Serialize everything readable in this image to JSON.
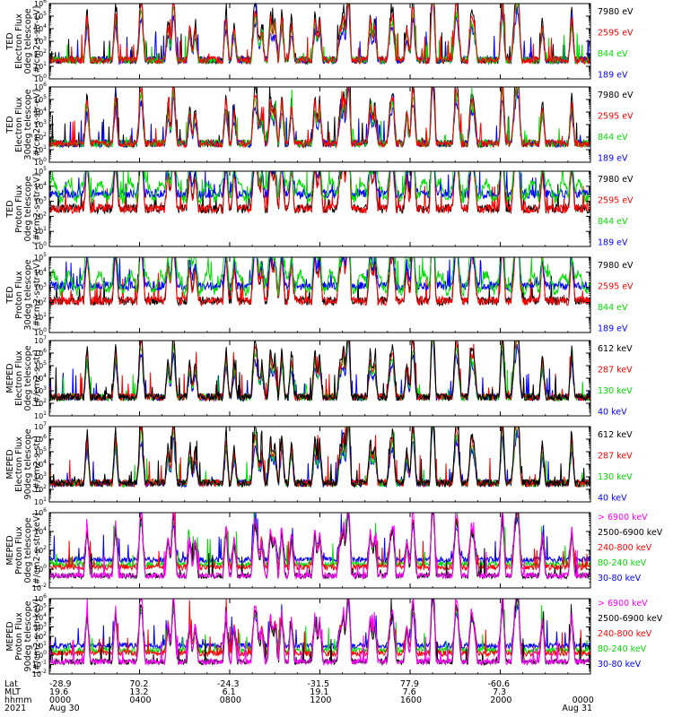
{
  "chart_data": [
    {
      "type": "line",
      "ylabel": [
        "TED",
        "Electron Flux",
        "0deg telescope",
        "[#/cm2-s-str-eV]"
      ],
      "ylim_exp": [
        0,
        6
      ],
      "ytick_exponents": [
        0,
        1,
        2,
        3,
        4,
        5,
        6
      ],
      "base": 1.2,
      "series": [
        {
          "name": "7980 eV",
          "color": "#000000"
        },
        {
          "name": "2595 eV",
          "color": "#ff0000"
        },
        {
          "name": "844 eV",
          "color": "#00dd00"
        },
        {
          "name": "189 eV",
          "color": "#0000ff"
        }
      ],
      "draw_order": [
        0,
        3,
        2,
        1
      ]
    },
    {
      "type": "line",
      "ylabel": [
        "TED",
        "Electron Flux",
        "30deg telescope",
        "[#/cm2-s-str-eV]"
      ],
      "ylim_exp": [
        0,
        6
      ],
      "ytick_exponents": [
        0,
        1,
        2,
        3,
        4,
        5,
        6
      ],
      "base": 1.2,
      "series": [
        {
          "name": "7980 eV",
          "color": "#000000"
        },
        {
          "name": "2595 eV",
          "color": "#ff0000"
        },
        {
          "name": "844 eV",
          "color": "#00dd00"
        },
        {
          "name": "189 eV",
          "color": "#0000ff"
        }
      ],
      "draw_order": [
        0,
        3,
        2,
        1
      ]
    },
    {
      "type": "line",
      "ylabel": [
        "TED",
        "Proton Flux",
        "0deg telescope",
        "[#/cm2-s-str-eV]"
      ],
      "ylim_exp": [
        0,
        5
      ],
      "ytick_exponents": [
        0,
        1,
        2,
        3,
        4,
        5
      ],
      "base": 2.0,
      "series": [
        {
          "name": "7980 eV",
          "color": "#000000"
        },
        {
          "name": "2595 eV",
          "color": "#ff0000"
        },
        {
          "name": "844 eV",
          "color": "#00dd00"
        },
        {
          "name": "189 eV",
          "color": "#0000ff"
        }
      ],
      "draw_order": [
        0,
        1,
        3,
        2
      ]
    },
    {
      "type": "line",
      "ylabel": [
        "TED",
        "Proton Flux",
        "30deg telescope",
        "[#/cm2-s-str-eV]"
      ],
      "ylim_exp": [
        0,
        5
      ],
      "ytick_exponents": [
        0,
        1,
        2,
        3,
        4,
        5
      ],
      "base": 1.6,
      "series": [
        {
          "name": "7980 eV",
          "color": "#000000"
        },
        {
          "name": "2595 eV",
          "color": "#ff0000"
        },
        {
          "name": "844 eV",
          "color": "#00dd00"
        },
        {
          "name": "189 eV",
          "color": "#0000ff"
        }
      ],
      "draw_order": [
        0,
        1,
        3,
        2
      ]
    },
    {
      "type": "line",
      "ylabel": [
        "MEPED",
        "Electron Flux",
        "0deg telescope",
        "[#/cm2-s-str]"
      ],
      "ylim_exp": [
        1,
        7
      ],
      "ytick_exponents": [
        1,
        2,
        3,
        4,
        5,
        6,
        7
      ],
      "base": 2.2,
      "series": [
        {
          "name": "612 keV",
          "color": "#000000"
        },
        {
          "name": "287 keV",
          "color": "#ff0000"
        },
        {
          "name": "130 keV",
          "color": "#00dd00"
        },
        {
          "name": "40 keV",
          "color": "#0000ff"
        }
      ],
      "draw_order": [
        3,
        2,
        1,
        0
      ]
    },
    {
      "type": "line",
      "ylabel": [
        "MEPED",
        "Electron Flux",
        "90deg telescope",
        "[#/cm2-s-str]"
      ],
      "ylim_exp": [
        1,
        7
      ],
      "ytick_exponents": [
        1,
        2,
        3,
        4,
        5,
        6,
        7
      ],
      "base": 2.2,
      "series": [
        {
          "name": "612 keV",
          "color": "#000000"
        },
        {
          "name": "287 keV",
          "color": "#ff0000"
        },
        {
          "name": "130 keV",
          "color": "#00dd00"
        },
        {
          "name": "40 keV",
          "color": "#0000ff"
        }
      ],
      "draw_order": [
        3,
        2,
        1,
        0
      ]
    },
    {
      "type": "line",
      "ylabel": [
        "MEPED",
        "Proton Flux",
        "0deg telescope",
        "[#/cm2-s-str-keV]"
      ],
      "ylim_exp": [
        -2,
        6
      ],
      "ytick_exponents": [
        -2,
        0,
        2,
        4,
        6
      ],
      "base": 0.2,
      "series": [
        {
          "name": "> 6900 keV",
          "color": "#ff00ff"
        },
        {
          "name": "2500-6900 keV",
          "color": "#000000"
        },
        {
          "name": "240-800 keV",
          "color": "#ff0000"
        },
        {
          "name": "80-240 keV",
          "color": "#00dd00"
        },
        {
          "name": "30-80 keV",
          "color": "#0000ff"
        }
      ],
      "draw_order": [
        4,
        3,
        2,
        1,
        0
      ]
    },
    {
      "type": "line",
      "ylabel": [
        "MEPED",
        "Proton Flux",
        "90deg telescope",
        "[#/cm2-s-str-keV]"
      ],
      "ylim_exp": [
        -2,
        6
      ],
      "ytick_exponents": [
        -2,
        -1,
        0,
        1,
        2,
        3,
        4,
        5,
        6
      ],
      "base": 0.2,
      "series": [
        {
          "name": "> 6900 keV",
          "color": "#ff00ff"
        },
        {
          "name": "2500-6900 keV",
          "color": "#000000"
        },
        {
          "name": "240-800 keV",
          "color": "#ff0000"
        },
        {
          "name": "80-240 keV",
          "color": "#00dd00"
        },
        {
          "name": "30-80 keV",
          "color": "#0000ff"
        }
      ],
      "draw_order": [
        4,
        3,
        2,
        1,
        0
      ]
    }
  ],
  "x_axis": {
    "row_labels": [
      "Lat",
      "MLT",
      "hhmm",
      "2021"
    ],
    "ticks": [
      {
        "frac": 0.0,
        "lat": "-28.9",
        "mlt": "19.6",
        "hhmm": "0000",
        "date": "Aug 30"
      },
      {
        "frac": 0.1667,
        "lat": "70.2",
        "mlt": "13.2",
        "hhmm": "0400",
        "date": ""
      },
      {
        "frac": 0.3333,
        "lat": "-24.3",
        "mlt": "6.1",
        "hhmm": "0800",
        "date": ""
      },
      {
        "frac": 0.5,
        "lat": "-31.5",
        "mlt": "19.1",
        "hhmm": "1200",
        "date": ""
      },
      {
        "frac": 0.6667,
        "lat": "77.9",
        "mlt": "7.6",
        "hhmm": "1600",
        "date": ""
      },
      {
        "frac": 0.8333,
        "lat": "-60.6",
        "mlt": "7.3",
        "hhmm": "2000",
        "date": ""
      },
      {
        "frac": 1.0,
        "lat": "",
        "mlt": "",
        "hhmm": "0000",
        "date": "Aug 31"
      }
    ]
  }
}
